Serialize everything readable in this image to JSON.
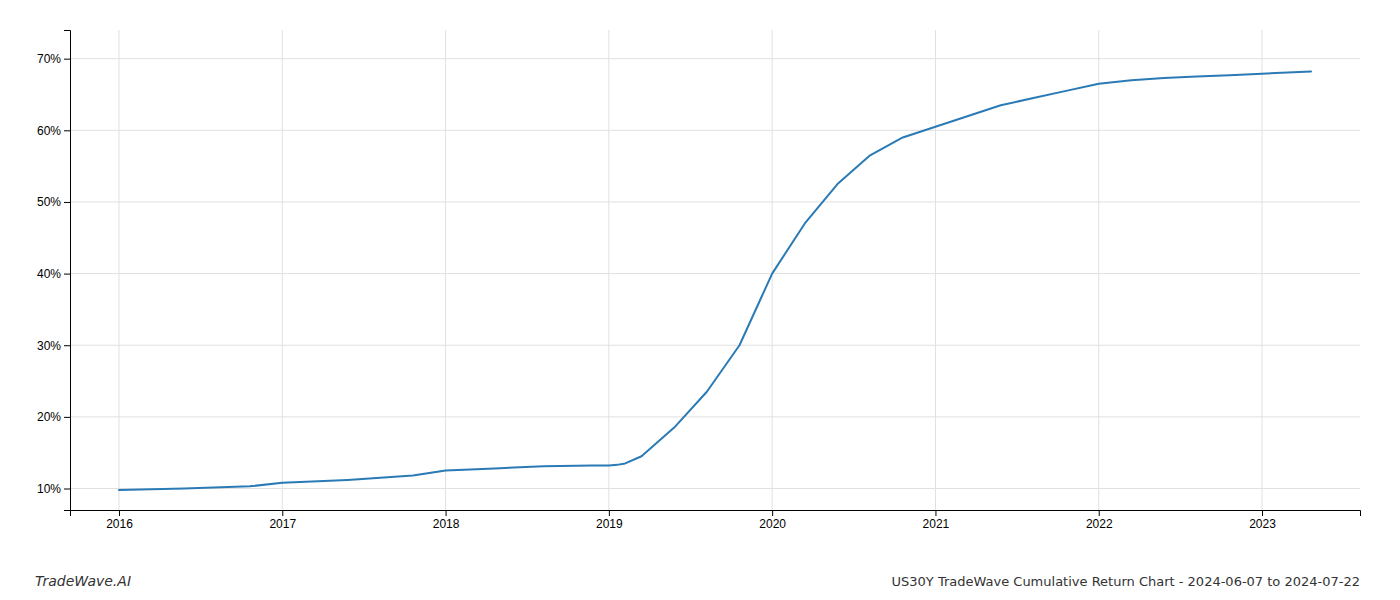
{
  "chart_data": {
    "type": "line",
    "title": "US30Y TradeWave Cumulative Return Chart - 2024-06-07 to 2024-07-22",
    "annotations": [
      "TradeWave.AI"
    ],
    "x": [
      2016.0,
      2016.4,
      2016.8,
      2017.0,
      2017.4,
      2017.8,
      2018.0,
      2018.3,
      2018.6,
      2018.9,
      2019.0,
      2019.05,
      2019.1,
      2019.2,
      2019.4,
      2019.6,
      2019.8,
      2020.0,
      2020.2,
      2020.4,
      2020.6,
      2020.8,
      2021.0,
      2021.2,
      2021.4,
      2021.6,
      2021.8,
      2022.0,
      2022.2,
      2022.4,
      2022.6,
      2022.8,
      2023.0,
      2023.3
    ],
    "values": [
      9.8,
      10.0,
      10.3,
      10.8,
      11.2,
      11.8,
      12.5,
      12.8,
      13.1,
      13.2,
      13.2,
      13.3,
      13.5,
      14.5,
      18.5,
      23.5,
      30.0,
      40.0,
      47.0,
      52.5,
      56.5,
      59.0,
      60.5,
      62.0,
      63.5,
      64.5,
      65.5,
      66.5,
      67.0,
      67.3,
      67.5,
      67.7,
      67.9,
      68.2
    ],
    "color": "#2a7ab5",
    "xlim": [
      2015.7,
      2023.6
    ],
    "xticks": [
      2016,
      2017,
      2018,
      2019,
      2020,
      2021,
      2022,
      2023
    ],
    "ylim": [
      7,
      74
    ],
    "yticks": [
      {
        "value": 10,
        "label": "10%"
      },
      {
        "value": 20,
        "label": "20%"
      },
      {
        "value": 30,
        "label": "30%"
      },
      {
        "value": 40,
        "label": "40%"
      },
      {
        "value": 50,
        "label": "50%"
      },
      {
        "value": 60,
        "label": "60%"
      },
      {
        "value": 70,
        "label": "70%"
      }
    ],
    "grid": true
  }
}
